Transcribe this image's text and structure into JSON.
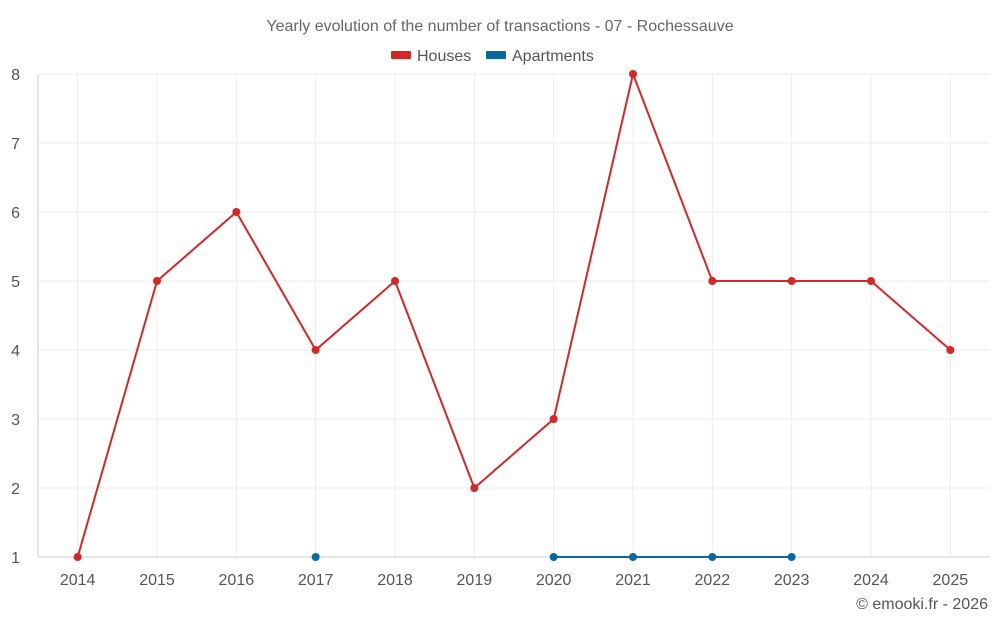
{
  "chart_data": {
    "type": "line",
    "title": "Yearly evolution of the number of transactions - 07 - Rochessauve",
    "xlabel": "",
    "ylabel": "",
    "categories": [
      "2014",
      "2015",
      "2016",
      "2017",
      "2018",
      "2019",
      "2020",
      "2021",
      "2022",
      "2023",
      "2024",
      "2025"
    ],
    "ylim": [
      1,
      8
    ],
    "yticks": [
      1,
      2,
      3,
      4,
      5,
      6,
      7,
      8
    ],
    "grid": true,
    "legend_position": "top-center",
    "series": [
      {
        "name": "Houses",
        "color": "#d62728",
        "values": [
          1,
          5,
          6,
          4,
          5,
          2,
          3,
          8,
          5,
          5,
          5,
          4
        ]
      },
      {
        "name": "Apartments",
        "color": "#0868a0",
        "values": [
          null,
          null,
          null,
          1,
          null,
          null,
          1,
          1,
          1,
          1,
          null,
          null
        ]
      }
    ]
  },
  "credit": "© emooki.fr - 2026"
}
